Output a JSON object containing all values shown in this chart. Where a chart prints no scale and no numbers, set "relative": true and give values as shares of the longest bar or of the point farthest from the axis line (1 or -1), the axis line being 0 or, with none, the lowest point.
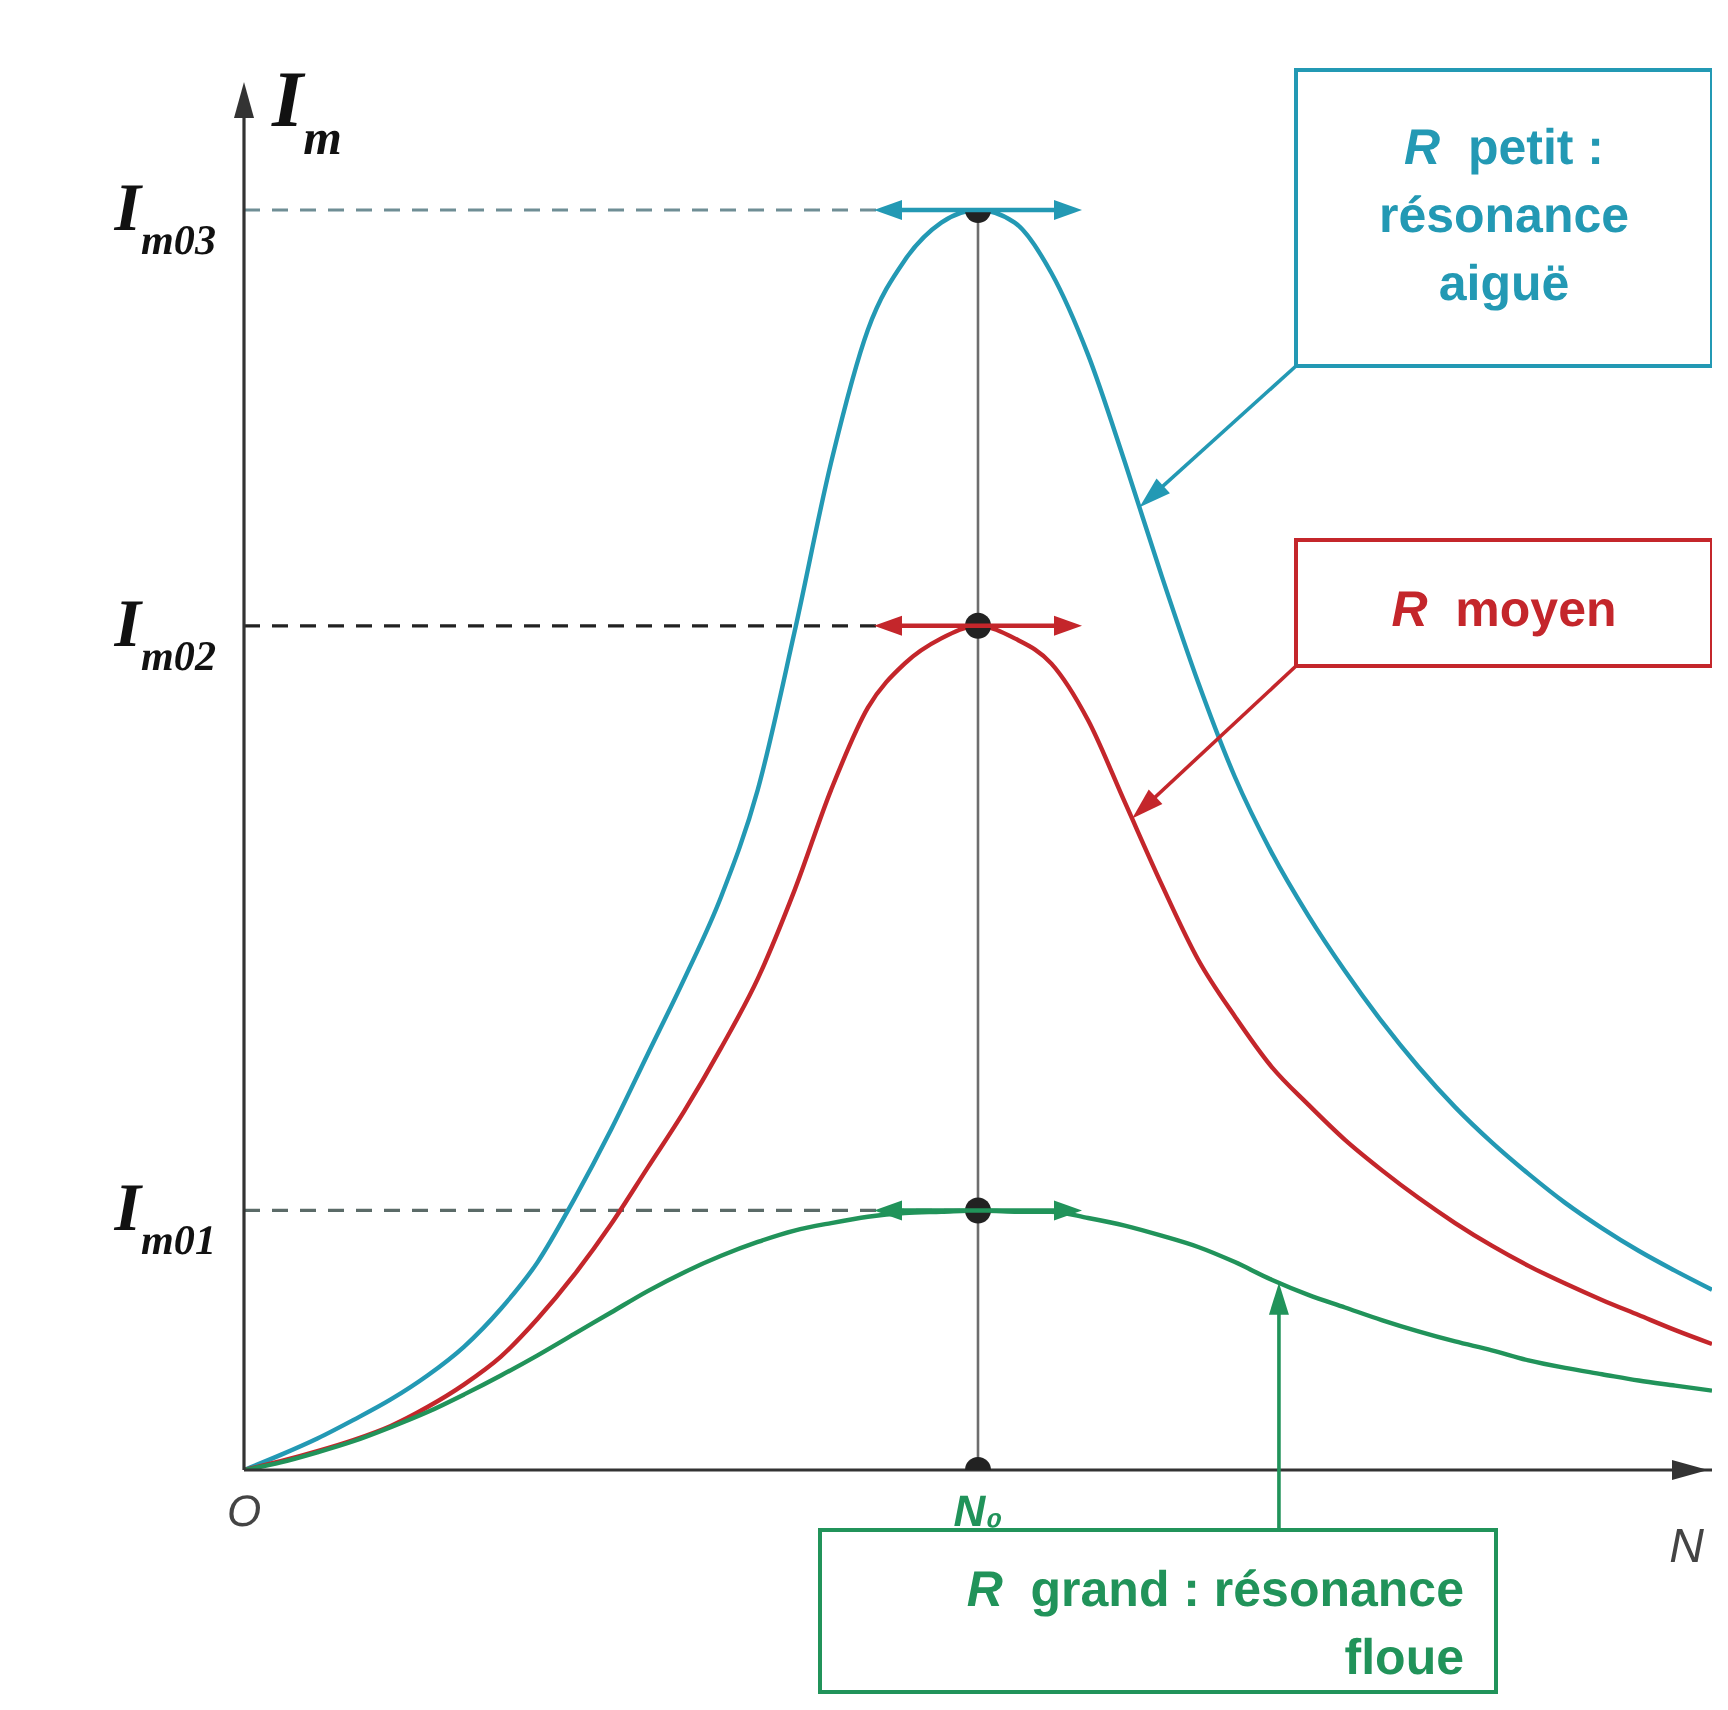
{
  "chart_data": {
    "type": "line",
    "relative": true,
    "ylabel": "I$_{m}$",
    "xlabel": "N",
    "tick_labels": "x",
    "marker": "none",
    "categories": [
      "O",
      null,
      null,
      null,
      null,
      null,
      null,
      null,
      null,
      null,
      null,
      null,
      null,
      null,
      null,
      null,
      null,
      null,
      null,
      null,
      "N₀",
      null,
      null,
      null,
      null,
      null,
      null,
      null,
      null,
      null,
      null,
      null,
      null,
      null,
      null,
      null,
      null,
      null,
      null,
      null,
      null
    ],
    "series": [
      {
        "name": "R petit : résonance aiguë",
        "color": "#2399b4",
        "values": [
          0,
          0.012,
          0.025,
          0.04,
          0.056,
          0.075,
          0.098,
          0.128,
          0.165,
          0.215,
          0.27,
          0.33,
          0.39,
          0.455,
          0.54,
          0.665,
          0.8,
          0.905,
          0.96,
          0.99,
          1,
          0.99,
          0.95,
          0.885,
          0.8,
          0.71,
          0.625,
          0.55,
          0.49,
          0.44,
          0.396,
          0.356,
          0.32,
          0.288,
          0.26,
          0.235,
          0.212,
          0.192,
          0.174,
          0.158,
          0.143
        ]
      },
      {
        "name": "R moyen",
        "color": "#c4262b",
        "values": [
          0,
          0.007,
          0.015,
          0.024,
          0.035,
          0.05,
          0.068,
          0.09,
          0.12,
          0.155,
          0.195,
          0.24,
          0.285,
          0.335,
          0.39,
          0.46,
          0.54,
          0.605,
          0.64,
          0.66,
          0.67,
          0.66,
          0.64,
          0.595,
          0.53,
          0.465,
          0.405,
          0.36,
          0.32,
          0.29,
          0.262,
          0.238,
          0.216,
          0.196,
          0.178,
          0.162,
          0.148,
          0.135,
          0.123,
          0.111,
          0.1
        ]
      },
      {
        "name": "R grand : résonance floue",
        "color": "#21935a",
        "values": [
          0,
          0.006,
          0.014,
          0.023,
          0.034,
          0.046,
          0.06,
          0.075,
          0.091,
          0.108,
          0.125,
          0.142,
          0.157,
          0.17,
          0.181,
          0.19,
          0.196,
          0.201,
          0.204,
          0.205,
          0.206,
          0.205,
          0.205,
          0.2,
          0.194,
          0.186,
          0.177,
          0.165,
          0.151,
          0.139,
          0.129,
          0.119,
          0.11,
          0.102,
          0.095,
          0.087,
          0.081,
          0.076,
          0.071,
          0.067,
          0.063
        ]
      },
      {
        "type": "scatter",
        "color": "#222222",
        "marker": "circle",
        "x": [
          "N₀",
          "N₀",
          "N₀",
          "N₀"
        ],
        "values": [
          1,
          0.67,
          0.206,
          0
        ]
      }
    ],
    "ref_lines": [
      {
        "axis": "y",
        "value": 1,
        "label": "I$_{m03}$",
        "color": "#6f8e95",
        "line_style": "dashed"
      },
      {
        "axis": "y",
        "value": 0.67,
        "label": "I$_{m02}$",
        "color": "#222222",
        "line_style": "dashed"
      },
      {
        "axis": "y",
        "value": 0.206,
        "label": "I$_{m01}$",
        "color": "#5b6b68",
        "line_style": "dashed"
      },
      {
        "axis": "x",
        "value": "N₀",
        "color": "#6e6e6e",
        "line_style": "solid"
      }
    ]
  }
}
